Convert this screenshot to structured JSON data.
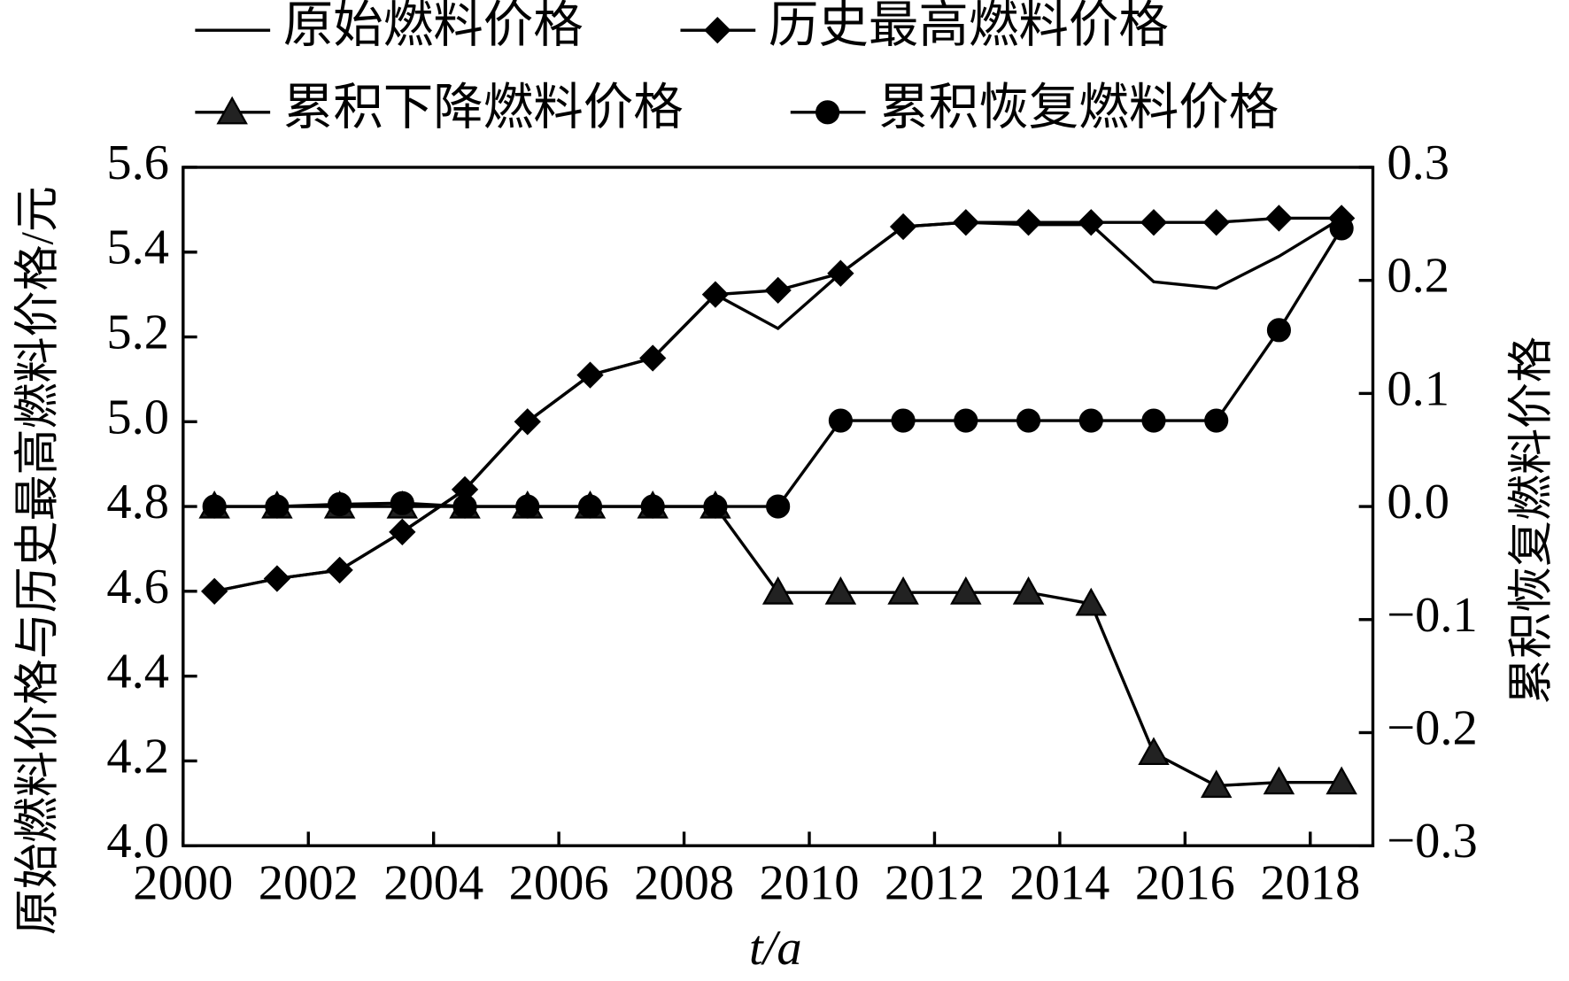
{
  "chart_data": {
    "type": "line",
    "y_label": "原始燃料价格与历史最高燃料价格/元",
    "y2_label": "累积恢复燃料价格",
    "x_label": "t/a",
    "x": [
      2000.5,
      2001.5,
      2002.5,
      2003.5,
      2004.5,
      2005.5,
      2006.5,
      2007.5,
      2008.5,
      2009.5,
      2010.5,
      2011.5,
      2012.5,
      2013.5,
      2014.5,
      2015.5,
      2016.5,
      2017.5,
      2018.5
    ],
    "xlim": [
      2000,
      2019
    ],
    "xticks": [
      2000,
      2002,
      2004,
      2006,
      2008,
      2010,
      2012,
      2014,
      2016,
      2018
    ],
    "ylim": [
      4.0,
      5.6
    ],
    "yticks": [
      {
        "value": 4.0,
        "label": "4.0"
      },
      {
        "value": 4.2,
        "label": "4.2"
      },
      {
        "value": 4.4,
        "label": "4.4"
      },
      {
        "value": 4.6,
        "label": "4.6"
      },
      {
        "value": 4.8,
        "label": "4.8"
      },
      {
        "value": 5.0,
        "label": "5.0"
      },
      {
        "value": 5.2,
        "label": "5.2"
      },
      {
        "value": 5.4,
        "label": "5.4"
      },
      {
        "value": 5.6,
        "label": "5.6"
      }
    ],
    "y2lim": [
      -0.3,
      0.3
    ],
    "y2ticks": [
      {
        "value": -0.3,
        "label": "−0.3"
      },
      {
        "value": -0.2,
        "label": "−0.2"
      },
      {
        "value": -0.1,
        "label": "−0.1"
      },
      {
        "value": 0,
        "label": "0.0"
      },
      {
        "value": 0.1,
        "label": "0.1"
      },
      {
        "value": 0.2,
        "label": "0.2"
      },
      {
        "value": 0.3,
        "label": "0.3"
      }
    ],
    "series": [
      {
        "name": "原始燃料价格",
        "color": "#000000",
        "marker": "none",
        "values": [
          4.6,
          4.63,
          4.65,
          4.74,
          4.84,
          5.0,
          5.11,
          5.15,
          5.3,
          5.22,
          5.35,
          5.46,
          5.47,
          5.465,
          5.465,
          5.33,
          5.315,
          5.39,
          5.48
        ]
      },
      {
        "name": "历史最高燃料价格",
        "color": "#000000",
        "marker": "diamond",
        "values": [
          4.6,
          4.63,
          4.65,
          4.74,
          4.84,
          5.0,
          5.11,
          5.15,
          5.3,
          5.31,
          5.35,
          5.46,
          5.47,
          5.47,
          5.47,
          5.47,
          5.47,
          5.48,
          5.48
        ]
      },
      {
        "name": "累积下降燃料价格",
        "color": "#000000",
        "marker": "triangle",
        "axis": "y2",
        "values": [
          0,
          0,
          0,
          0,
          0,
          0,
          0,
          0,
          0,
          -0.076,
          -0.076,
          -0.076,
          -0.076,
          -0.076,
          -0.086,
          -0.218,
          -0.247,
          -0.244,
          -0.244
        ]
      },
      {
        "name": "累积恢复燃料价格",
        "color": "#000000",
        "marker": "circle",
        "axis": "y2",
        "values": [
          0,
          0,
          0.002,
          0.003,
          0,
          0,
          0,
          0,
          0,
          0,
          0.076,
          0.076,
          0.076,
          0.076,
          0.076,
          0.076,
          0.076,
          0.156,
          0.246
        ]
      }
    ]
  }
}
